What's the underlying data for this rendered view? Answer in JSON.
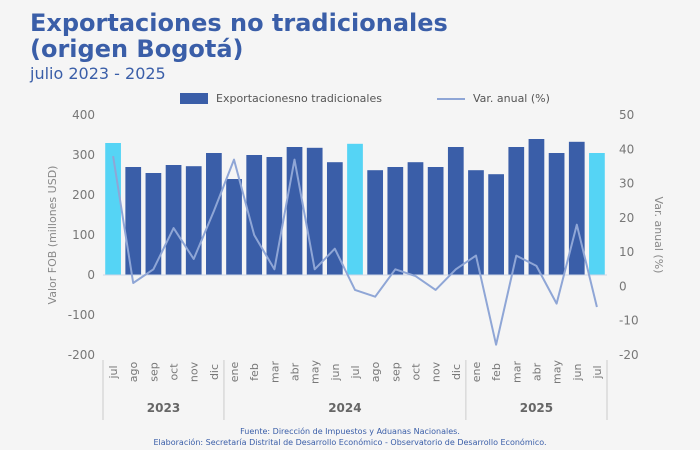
{
  "header": {
    "title_line1": "Exportaciones no tradicionales",
    "title_line2": "(origen Bogotá)",
    "subtitle": "julio 2023 - 2025"
  },
  "legend": {
    "bar_label": "Exportacionesno tradicionales",
    "line_label": "Var. anual (%)"
  },
  "footer": {
    "source": "Fuente: Dirección de Impuestos y Aduanas Nacionales.",
    "credit": "Elaboración: Secretaría Distrital de Desarrollo Económico - Observatorio de Desarrollo Económico."
  },
  "colors": {
    "bar": "#3a5ea8",
    "bar_highlight": "#55d4f5",
    "line": "#8fa6d6",
    "title": "#3a5ea8"
  },
  "chart_data": {
    "type": "bar",
    "categories": [
      "jul",
      "ago",
      "sep",
      "oct",
      "nov",
      "dic",
      "ene",
      "feb",
      "mar",
      "abr",
      "may",
      "jun",
      "jul",
      "ago",
      "sep",
      "oct",
      "nov",
      "dic",
      "ene",
      "feb",
      "mar",
      "abr",
      "may",
      "jun",
      "jul"
    ],
    "years": [
      {
        "label": "2023",
        "from": 0,
        "to": 5
      },
      {
        "label": "2024",
        "from": 6,
        "to": 17
      },
      {
        "label": "2025",
        "from": 18,
        "to": 24
      }
    ],
    "highlight_indices": [
      0,
      12,
      24
    ],
    "series": [
      {
        "name": "Exportacionesno tradicionales",
        "type": "bar",
        "axis": "left",
        "values": [
          330,
          270,
          255,
          275,
          272,
          305,
          240,
          300,
          295,
          320,
          318,
          282,
          328,
          262,
          270,
          282,
          270,
          320,
          262,
          252,
          320,
          340,
          305,
          333,
          305
        ]
      },
      {
        "name": "Var. anual (%)",
        "type": "line",
        "axis": "right",
        "values": [
          38,
          1,
          5,
          17,
          8,
          22,
          37,
          15,
          5,
          37,
          5,
          11,
          -1,
          -3,
          5,
          3,
          -1,
          5,
          9,
          -17,
          9,
          6,
          -5,
          18,
          -6
        ]
      }
    ],
    "ylabel": "Valor FOB (millones USD)",
    "ylabel_right": "Var. anual (%)",
    "ylim": [
      -200,
      400
    ],
    "ylim_right": [
      -20,
      50
    ],
    "yticks": [
      -200,
      -100,
      0,
      100,
      200,
      300,
      400
    ],
    "yticks_right": [
      -20,
      -10,
      0,
      10,
      20,
      30,
      40,
      50
    ],
    "grid": false,
    "legend_position": "top"
  }
}
